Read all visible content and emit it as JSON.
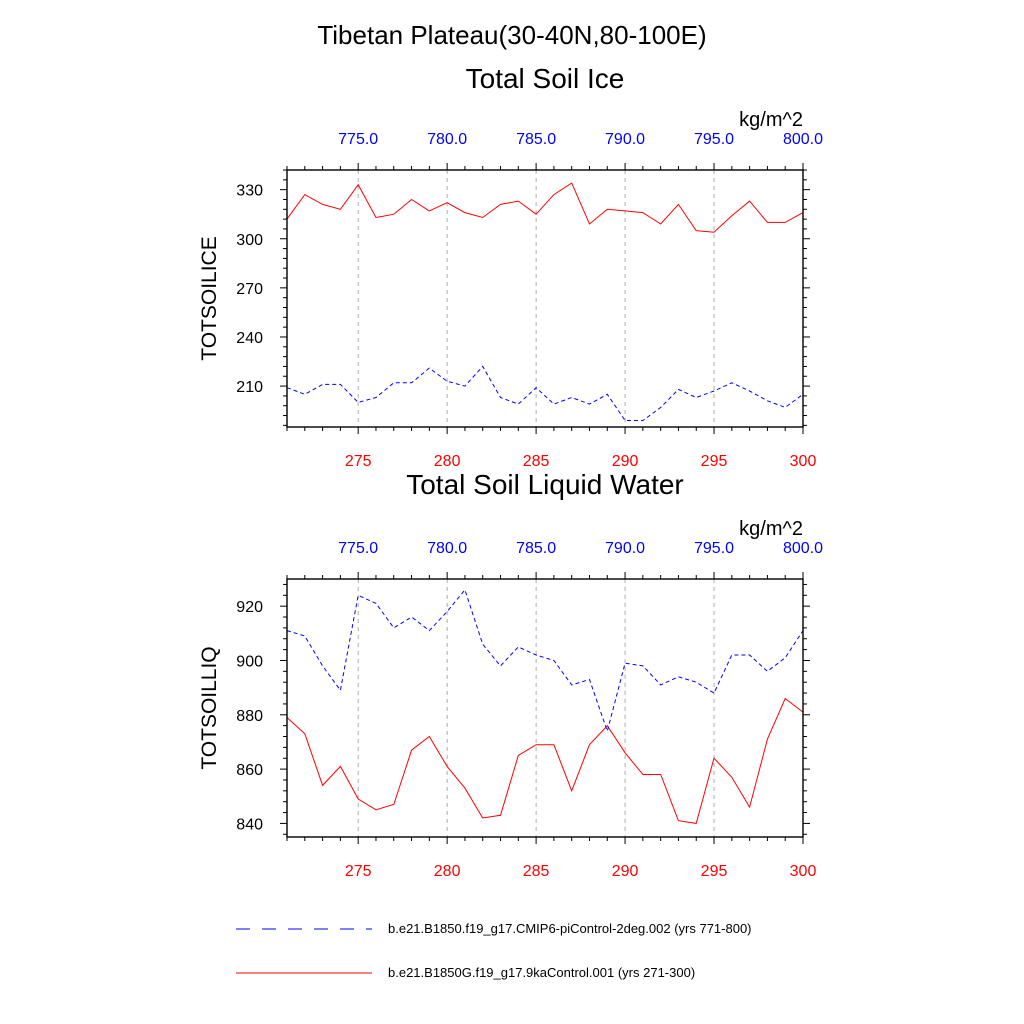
{
  "title": "Tibetan Plateau(30-40N,80-100E)",
  "colors": {
    "bottom_axis": "#ff0000",
    "top_axis": "#0000ff",
    "series_red": "#ff0000",
    "series_blue": "#0000ff",
    "grid": "#999999"
  },
  "chart_data": [
    {
      "type": "line",
      "title": "Total Soil Ice",
      "ylabel": "TOTSOILICE",
      "units": "kg/m^2",
      "ylim": [
        185,
        342
      ],
      "yticks": [
        210,
        240,
        270,
        300,
        330
      ],
      "yminor_step": 6,
      "xlim": [
        271,
        300
      ],
      "xticks": [
        275,
        280,
        285,
        290,
        295,
        300
      ],
      "xtick_labels": [
        "275",
        "280",
        "285",
        "290",
        "295",
        "300"
      ],
      "top_xticks": [
        775,
        780,
        785,
        790,
        795,
        800
      ],
      "top_xtick_labels": [
        "775.0",
        "780.0",
        "785.0",
        "790.0",
        "795.0",
        "800.0"
      ],
      "series": [
        {
          "name": "b.e21.B1850G.f19_g17.9kaControl.001 (yrs 271-300)",
          "style": "solid",
          "color": "#ff0000",
          "x": [
            271,
            272,
            273,
            274,
            275,
            276,
            277,
            278,
            279,
            280,
            281,
            282,
            283,
            284,
            285,
            286,
            287,
            288,
            289,
            290,
            291,
            292,
            293,
            294,
            295,
            296,
            297,
            298,
            299,
            300
          ],
          "values": [
            312,
            327,
            321,
            318,
            333,
            313,
            315,
            324,
            317,
            322,
            316,
            313,
            321,
            323,
            315,
            327,
            334,
            309,
            318,
            317,
            316,
            309,
            321,
            305,
            304,
            314,
            323,
            310,
            310,
            316
          ]
        },
        {
          "name": "b.e21.B1850.f19_g17.CMIP6-piControl-2deg.002 (yrs 771-800)",
          "style": "dashed",
          "color": "#0000ff",
          "x": [
            271,
            272,
            273,
            274,
            275,
            276,
            277,
            278,
            279,
            280,
            281,
            282,
            283,
            284,
            285,
            286,
            287,
            288,
            289,
            290,
            291,
            292,
            293,
            294,
            295,
            296,
            297,
            298,
            299,
            300
          ],
          "values": [
            209,
            205,
            211,
            211,
            200,
            203,
            212,
            212,
            221,
            213,
            210,
            222,
            203,
            199,
            209,
            199,
            203,
            199,
            205,
            189,
            189,
            197,
            208,
            203,
            207,
            212,
            207,
            201,
            197,
            205
          ]
        }
      ]
    },
    {
      "type": "line",
      "title": "Total Soil Liquid Water",
      "ylabel": "TOTSOILLIQ",
      "units": "kg/m^2",
      "ylim": [
        835,
        930
      ],
      "yticks": [
        840,
        860,
        880,
        900,
        920
      ],
      "yminor_step": 4,
      "xlim": [
        271,
        300
      ],
      "xticks": [
        275,
        280,
        285,
        290,
        295,
        300
      ],
      "xtick_labels": [
        "275",
        "280",
        "285",
        "290",
        "295",
        "300"
      ],
      "top_xticks": [
        775,
        780,
        785,
        790,
        795,
        800
      ],
      "top_xtick_labels": [
        "775.0",
        "780.0",
        "785.0",
        "790.0",
        "795.0",
        "800.0"
      ],
      "series": [
        {
          "name": "b.e21.B1850G.f19_g17.9kaControl.001 (yrs 271-300)",
          "style": "solid",
          "color": "#ff0000",
          "x": [
            271,
            272,
            273,
            274,
            275,
            276,
            277,
            278,
            279,
            280,
            281,
            282,
            283,
            284,
            285,
            286,
            287,
            288,
            289,
            290,
            291,
            292,
            293,
            294,
            295,
            296,
            297,
            298,
            299,
            300
          ],
          "values": [
            879,
            873,
            854,
            861,
            849,
            845,
            847,
            867,
            872,
            861,
            853,
            842,
            843,
            865,
            869,
            869,
            852,
            869,
            876,
            866,
            858,
            858,
            841,
            840,
            864,
            857,
            846,
            871,
            886,
            881
          ]
        },
        {
          "name": "b.e21.B1850.f19_g17.CMIP6-piControl-2deg.002 (yrs 771-800)",
          "style": "dashed",
          "color": "#0000ff",
          "x": [
            271,
            272,
            273,
            274,
            275,
            276,
            277,
            278,
            279,
            280,
            281,
            282,
            283,
            284,
            285,
            286,
            287,
            288,
            289,
            290,
            291,
            292,
            293,
            294,
            295,
            296,
            297,
            298,
            299,
            300
          ],
          "values": [
            911,
            909,
            898,
            889,
            924,
            921,
            912,
            916,
            911,
            918,
            926,
            906,
            898,
            905,
            902,
            900,
            891,
            893,
            874,
            899,
            898,
            891,
            894,
            892,
            888,
            902,
            902,
            896,
            901,
            911
          ]
        }
      ]
    }
  ],
  "legend": [
    {
      "label": "b.e21.B1850.f19_g17.CMIP6-piControl-2deg.002 (yrs 771-800)",
      "style": "dashed",
      "color": "#0000ff"
    },
    {
      "label": "b.e21.B1850G.f19_g17.9kaControl.001 (yrs 271-300)",
      "style": "solid",
      "color": "#ff0000"
    }
  ]
}
